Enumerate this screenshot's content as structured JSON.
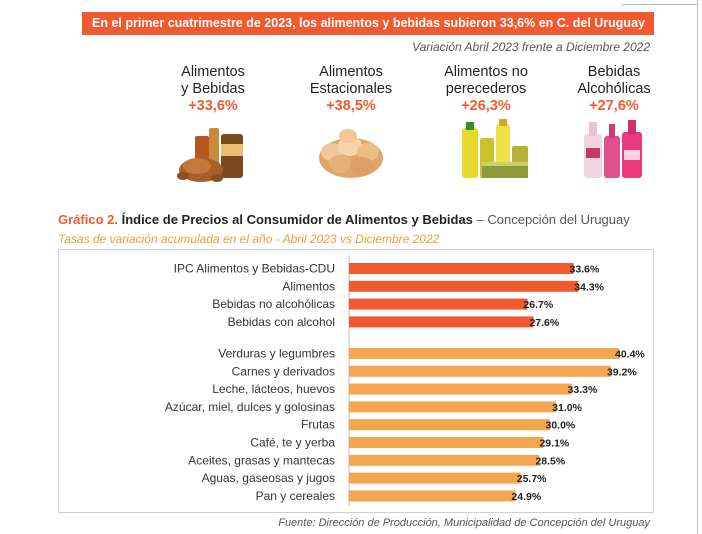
{
  "header": {
    "banner": "En el primer cuatrimestre de 2023, los alimentos y bebidas subieron 33,6% en C. del Uruguay",
    "subtitle": "Variación Abril 2023 frente a Diciembre 2022"
  },
  "categories": [
    {
      "label": "Alimentos\ny Bebidas",
      "value": "+33,6%",
      "icon": "roast-chicken-groceries-icon"
    },
    {
      "label": "Alimentos\nEstacionales",
      "value": "+38,5%",
      "icon": "eggs-potatoes-icon"
    },
    {
      "label": "Alimentos no\nperecederos",
      "value": "+26,3%",
      "icon": "canned-goods-oil-icon"
    },
    {
      "label": "Bebidas\nAlcohólicas",
      "value": "+27,6%",
      "icon": "liquor-bottles-icon"
    }
  ],
  "graph": {
    "number": "Gráfico 2.",
    "title": " Índice de Precios al Consumidor de Alimentos y Bebidas",
    "location": " – Concepción del Uruguay",
    "subtitle": "Tasas de variación acumulada en el año - Abril 2023 vs Diciembre 2022",
    "source": "Fuente: Dirección de Producción, Municipalidad de Concepción del Uruguay"
  },
  "colors": {
    "accent": "#f15a30",
    "bar_group1": "#f15a30",
    "bar_group2": "#f6a54f",
    "banner_text": "#ffffff"
  },
  "chart_data": {
    "type": "bar",
    "orientation": "horizontal",
    "xlim": [
      0,
      41
    ],
    "grid": false,
    "groups": [
      {
        "categories": [
          "IPC Alimentos y Bebidas-CDU",
          "Alimentos",
          "Bebidas no alcohólicas",
          "Bebidas con alcohol"
        ],
        "values": [
          33.6,
          34.3,
          26.7,
          27.6
        ],
        "labels": [
          "33.6%",
          "34.3%",
          "26.7%",
          "27.6%"
        ]
      },
      {
        "categories": [
          "Verduras y legumbres",
          "Carnes y derivados",
          "Leche, lácteos, huevos",
          "Azúcar, miel, dulces y golosinas",
          "Frutas",
          "Café, te y yerba",
          "Aceites, grasas y mantecas",
          "Aguas, gaseosas y jugos",
          "Pan y cereales"
        ],
        "values": [
          40.4,
          39.2,
          33.3,
          31.0,
          30.0,
          29.1,
          28.5,
          25.7,
          24.9
        ],
        "labels": [
          "40.4%",
          "39.2%",
          "33.3%",
          "31.0%",
          "30.0%",
          "29.1%",
          "28.5%",
          "25.7%",
          "24.9%"
        ]
      }
    ]
  }
}
